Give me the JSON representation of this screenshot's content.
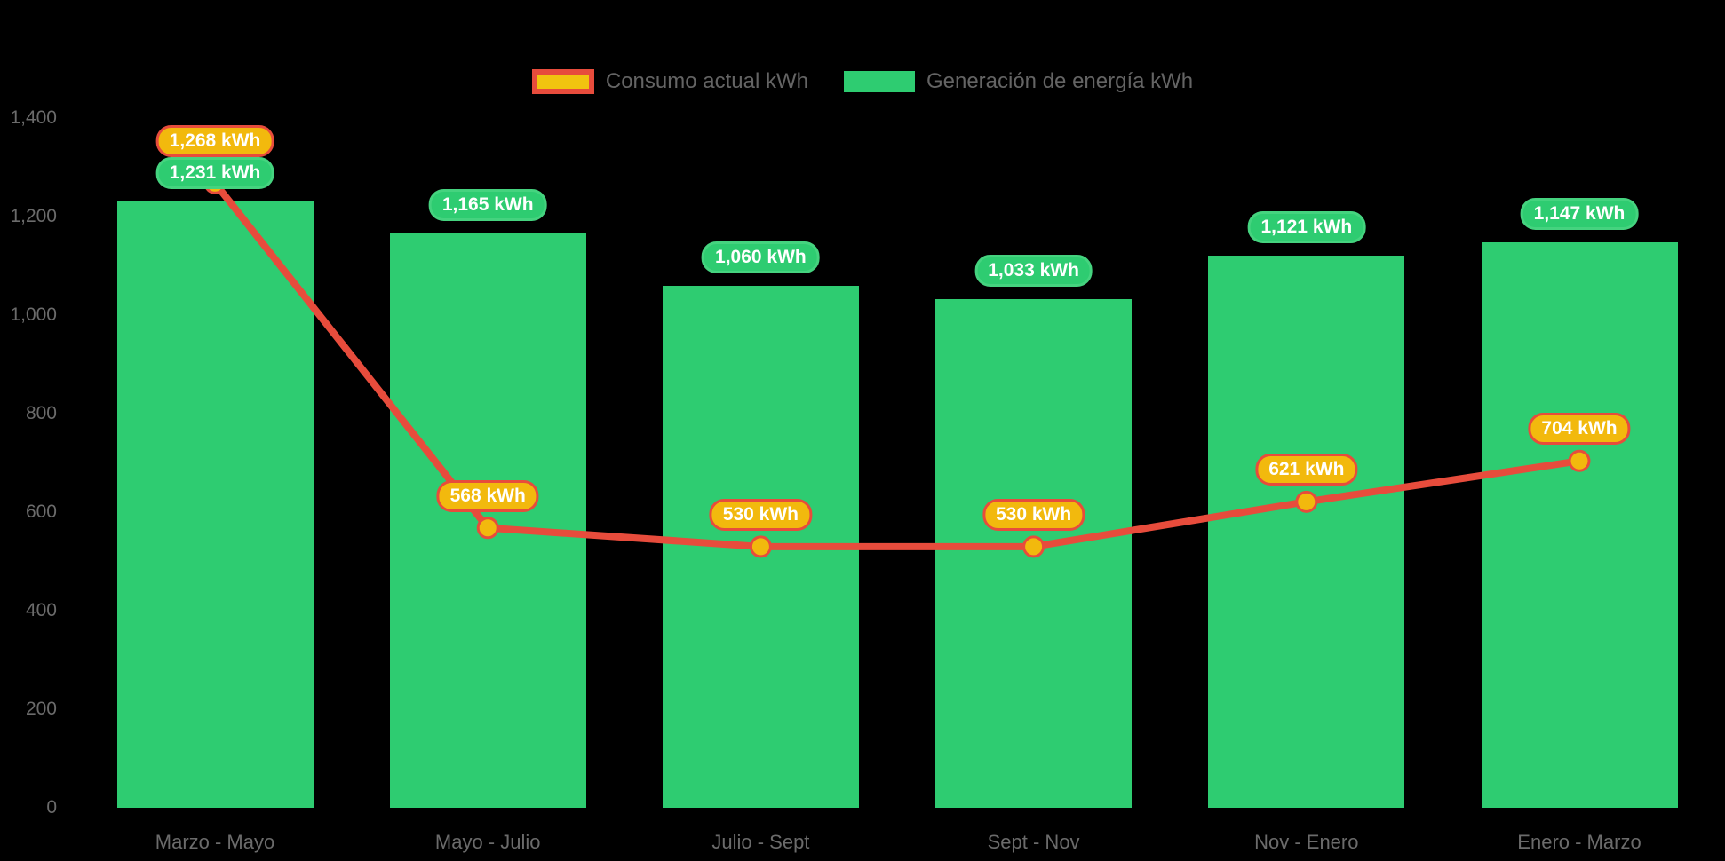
{
  "chart_data": {
    "type": "bar",
    "title": "",
    "categories": [
      "Marzo - Mayo",
      "Mayo - Julio",
      "Julio - Sept",
      "Sept - Nov",
      "Nov - Enero",
      "Enero - Marzo"
    ],
    "series": [
      {
        "name": "Consumo actual kWh",
        "render": "line",
        "values": [
          1268,
          568,
          530,
          530,
          621,
          704
        ],
        "labels": [
          "1,268 kWh",
          "568 kWh",
          "530 kWh",
          "530 kWh",
          "621 kWh",
          "704 kWh"
        ],
        "line_color": "#E74C3C",
        "marker_color": "#F2B90D",
        "label_fill": "#F2B90D",
        "label_border": "#E74C3C"
      },
      {
        "name": "Generación de energía kWh",
        "render": "bar",
        "values": [
          1231,
          1165,
          1060,
          1033,
          1121,
          1147
        ],
        "labels": [
          "1,231 kWh",
          "1,165 kWh",
          "1,060 kWh",
          "1,033 kWh",
          "1,121 kWh",
          "1,147 kWh"
        ],
        "bar_color": "#2ECC71",
        "label_fill": "#2ECC71"
      }
    ],
    "xlabel": "",
    "ylabel": "",
    "ylim": [
      0,
      1400
    ],
    "yticks": [
      0,
      200,
      400,
      600,
      800,
      1000,
      1200,
      1400
    ],
    "ytick_labels": [
      "0",
      "200",
      "400",
      "600",
      "800",
      "1,000",
      "1,200",
      "1,400"
    ],
    "grid": false,
    "legend_position": "top-center",
    "background_color": "#000000",
    "axis_text_color": "#6b6b6b",
    "legend_text_color": "#646464"
  }
}
